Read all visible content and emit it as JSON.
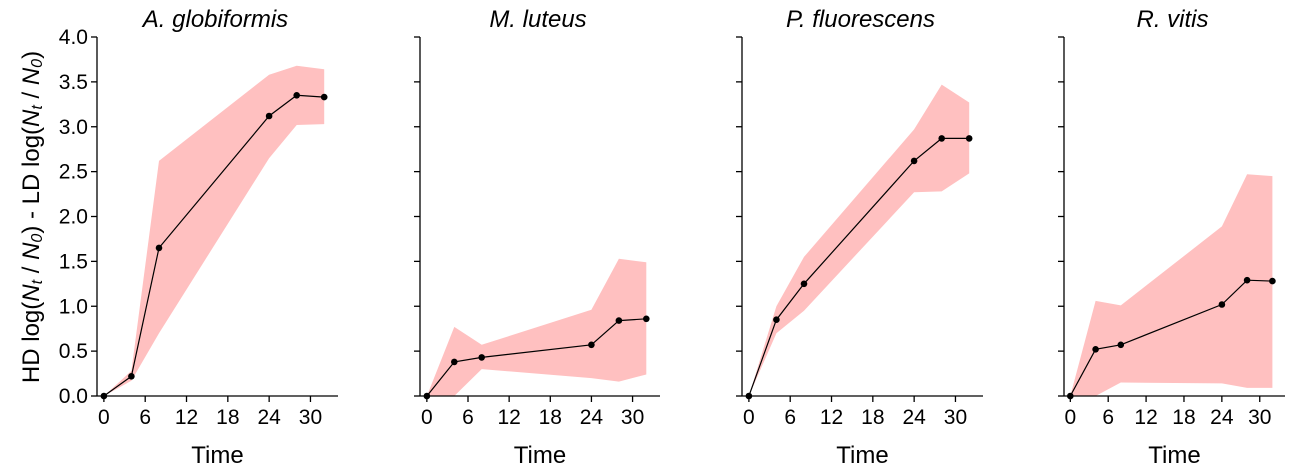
{
  "chart_data": [
    {
      "type": "line",
      "title": "A. globiformis",
      "xlabel": "Time",
      "ylabel": "HD log(Nt / N0) - LD log(Nt / N0)",
      "xlim": [
        -1,
        34
      ],
      "ylim": [
        0,
        4
      ],
      "x_ticks": [
        0,
        6,
        12,
        18,
        24,
        30
      ],
      "y_ticks": [
        0.0,
        0.5,
        1.0,
        1.5,
        2.0,
        2.5,
        3.0,
        3.5,
        4.0
      ],
      "x": [
        0,
        4,
        8,
        24,
        28,
        32
      ],
      "series": [
        {
          "values": [
            0.0,
            0.22,
            1.65,
            3.12,
            3.35,
            3.33
          ],
          "lower": [
            0.0,
            0.17,
            0.7,
            2.65,
            3.02,
            3.03
          ],
          "upper": [
            0.0,
            0.28,
            2.62,
            3.58,
            3.68,
            3.64
          ]
        }
      ],
      "band_color": "#ffc0c0",
      "line_color": "#000000",
      "grid": false
    },
    {
      "type": "line",
      "title": "M. luteus",
      "xlabel": "Time",
      "ylabel": "",
      "xlim": [
        -1,
        34
      ],
      "ylim": [
        0,
        4
      ],
      "x_ticks": [
        0,
        6,
        12,
        18,
        24,
        30
      ],
      "y_ticks": [
        0.0,
        0.5,
        1.0,
        1.5,
        2.0,
        2.5,
        3.0,
        3.5,
        4.0
      ],
      "x": [
        0,
        4,
        8,
        24,
        28,
        32
      ],
      "series": [
        {
          "values": [
            0.0,
            0.38,
            0.43,
            0.57,
            0.84,
            0.86
          ],
          "lower": [
            0.0,
            0.0,
            0.3,
            0.2,
            0.16,
            0.24
          ],
          "upper": [
            0.0,
            0.77,
            0.57,
            0.96,
            1.53,
            1.49
          ]
        }
      ],
      "band_color": "#ffc0c0",
      "line_color": "#000000",
      "grid": false
    },
    {
      "type": "line",
      "title": "P. fluorescens",
      "xlabel": "Time",
      "ylabel": "",
      "xlim": [
        -1,
        34
      ],
      "ylim": [
        0,
        4
      ],
      "x_ticks": [
        0,
        6,
        12,
        18,
        24,
        30
      ],
      "y_ticks": [
        0.0,
        0.5,
        1.0,
        1.5,
        2.0,
        2.5,
        3.0,
        3.5,
        4.0
      ],
      "x": [
        0,
        4,
        8,
        24,
        28,
        32
      ],
      "series": [
        {
          "values": [
            0.0,
            0.85,
            1.25,
            2.62,
            2.87,
            2.87
          ],
          "lower": [
            0.0,
            0.7,
            0.95,
            2.27,
            2.28,
            2.48
          ],
          "upper": [
            0.0,
            1.0,
            1.55,
            2.97,
            3.47,
            3.27
          ]
        }
      ],
      "band_color": "#ffc0c0",
      "line_color": "#000000",
      "grid": false
    },
    {
      "type": "line",
      "title": "R. vitis",
      "xlabel": "Time",
      "ylabel": "",
      "xlim": [
        -1,
        34
      ],
      "ylim": [
        0,
        4
      ],
      "x_ticks": [
        0,
        6,
        12,
        18,
        24,
        30
      ],
      "y_ticks": [
        0.0,
        0.5,
        1.0,
        1.5,
        2.0,
        2.5,
        3.0,
        3.5,
        4.0
      ],
      "x": [
        0,
        4,
        8,
        24,
        28,
        32
      ],
      "series": [
        {
          "values": [
            0.0,
            0.52,
            0.57,
            1.02,
            1.29,
            1.28
          ],
          "lower": [
            0.0,
            0.0,
            0.15,
            0.14,
            0.09,
            0.09
          ],
          "upper": [
            0.0,
            1.06,
            1.01,
            1.89,
            2.47,
            2.45
          ]
        }
      ],
      "band_color": "#ffc0c0",
      "line_color": "#000000",
      "grid": false
    }
  ]
}
